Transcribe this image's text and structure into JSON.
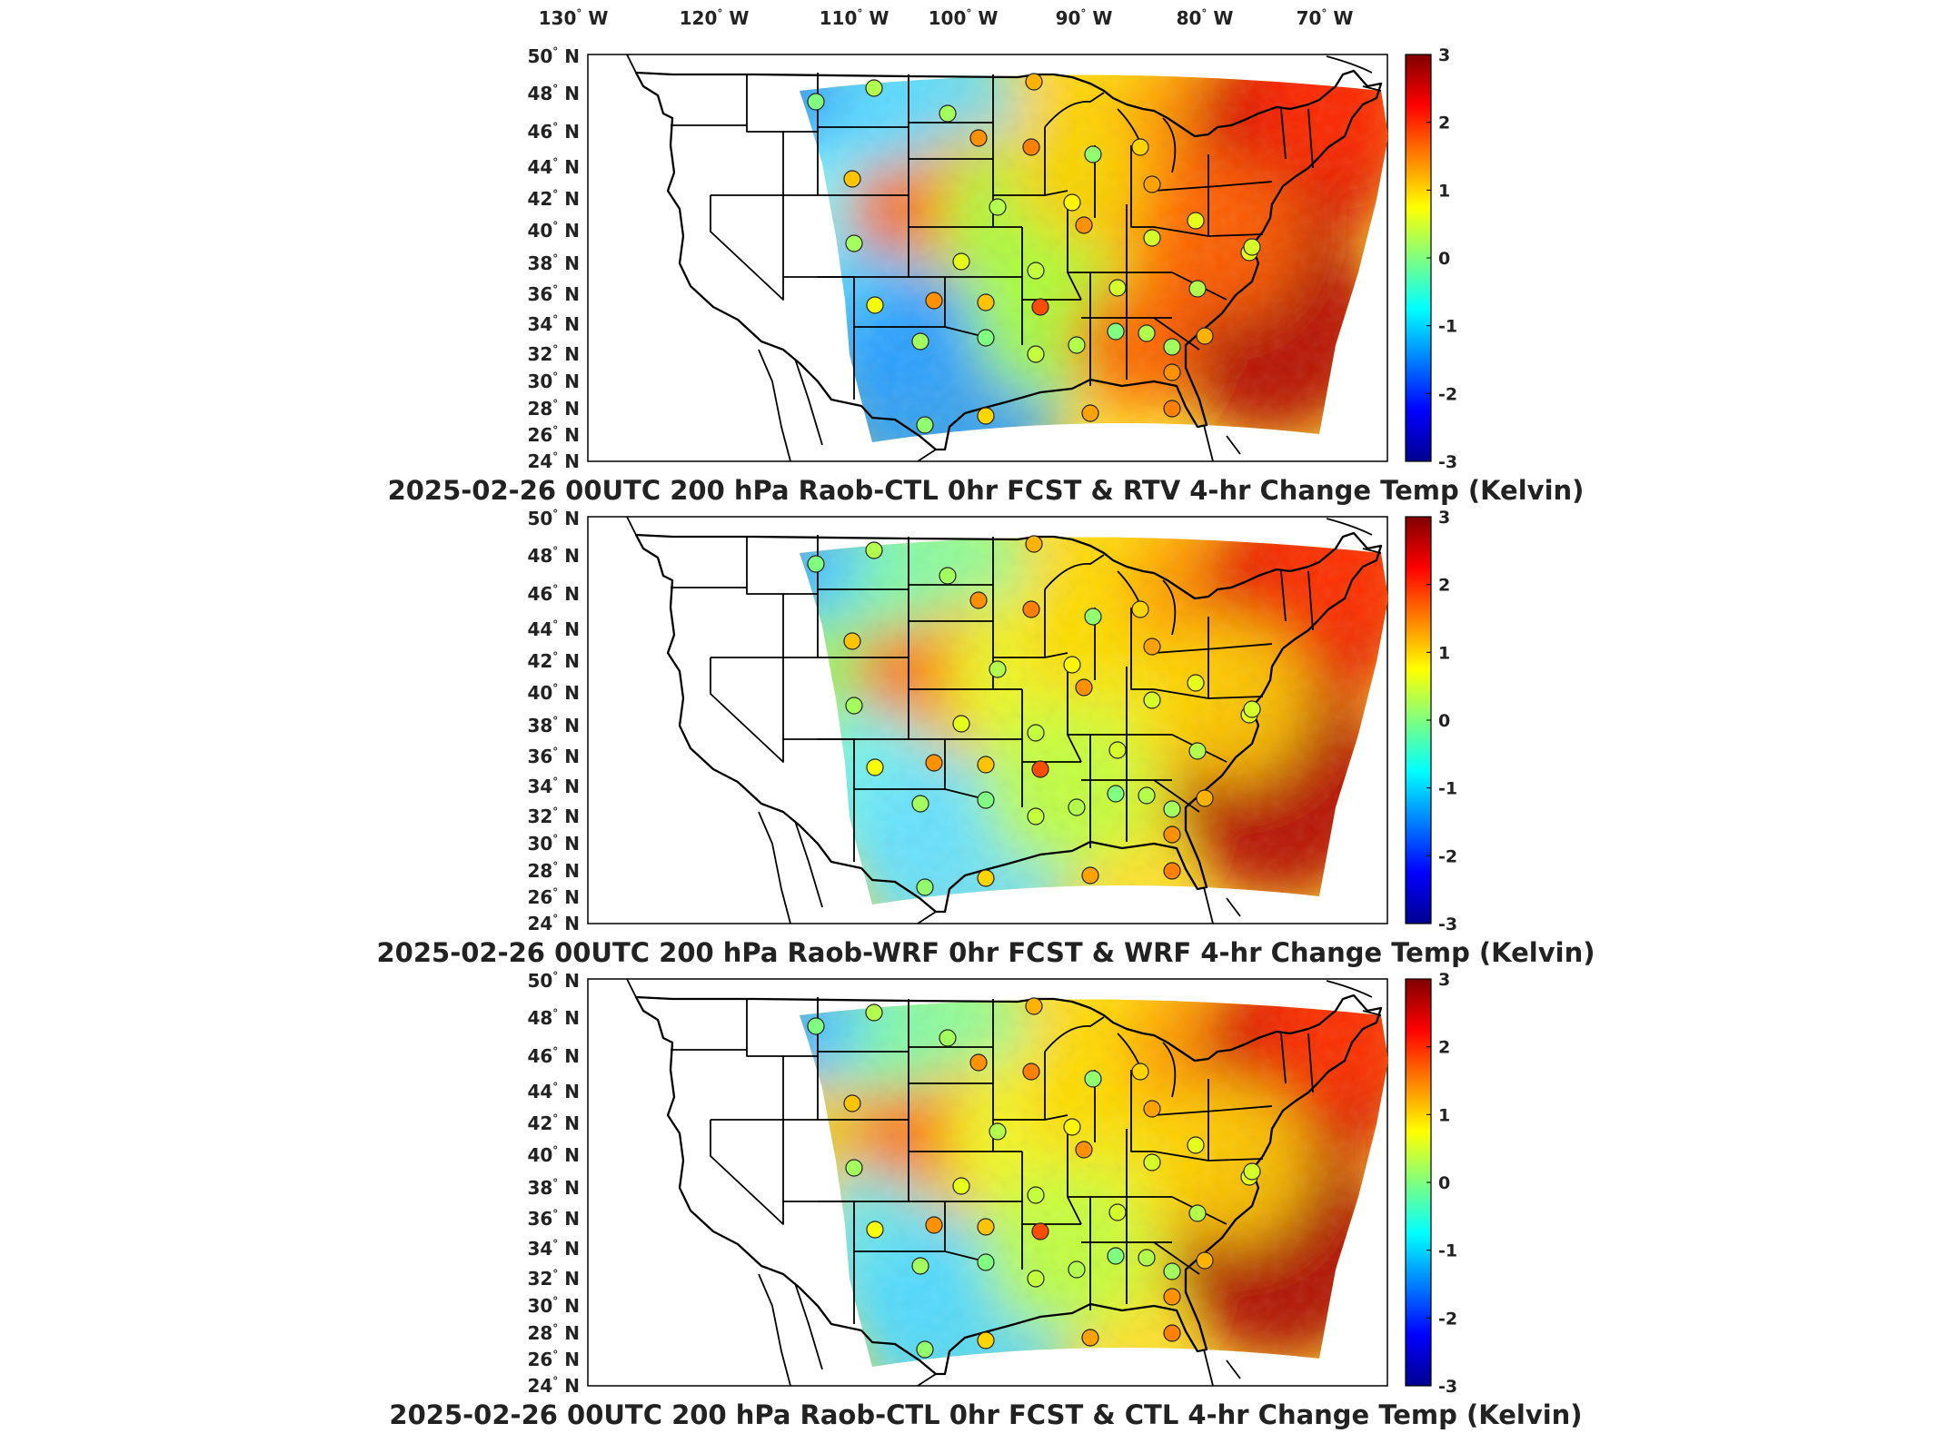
{
  "lon_labels": [
    "130",
    "120",
    "110",
    "100",
    "90",
    "80",
    "70"
  ],
  "lon_suffix": "W",
  "lat_labels": [
    "50",
    "48",
    "46",
    "44",
    "42",
    "40",
    "38",
    "36",
    "34",
    "32",
    "30",
    "28",
    "26",
    "24"
  ],
  "lat_suffix": "N",
  "degree_mark": "°",
  "colorbar": {
    "ticks": [
      "3",
      "2",
      "1",
      "0",
      "-1",
      "-2",
      "-3"
    ],
    "colormap": [
      "#00008f",
      "#0000ff",
      "#00ffff",
      "#ffff00",
      "#ff0000",
      "#800000"
    ]
  },
  "panels": [
    {
      "title": "2025-02-26 00UTC 200 hPa Raob-CTL 0hr FCST & RTV 4-hr Change Temp (Kelvin)"
    },
    {
      "title": "2025-02-26 00UTC 200 hPa Raob-WRF 0hr FCST & WRF 4-hr Change Temp (Kelvin)"
    },
    {
      "title": "2025-02-26 00UTC 200 hPa Raob-CTL 0hr FCST & CTL 4-hr Change Temp (Kelvin)"
    }
  ],
  "raob_station_values": {
    "panel_1": [
      0.0,
      0.3,
      0.2,
      1.2,
      1.4,
      1.5,
      0.1,
      1.0,
      1.3,
      1.1,
      0.3,
      0.8,
      1.4,
      0.5,
      0.6,
      0.2,
      0.6,
      0.4,
      0.6,
      0.5,
      0.7,
      1.4,
      1.1,
      1.8,
      0.5,
      0.3,
      0.2,
      0.0,
      0.4,
      0.3
    ],
    "panel_2": [
      0.0,
      0.3,
      0.2,
      1.2,
      1.4,
      1.5,
      0.1,
      1.0,
      1.3,
      1.1,
      0.3,
      0.8,
      1.4,
      0.5,
      0.6,
      0.2,
      0.6,
      0.4,
      0.6,
      0.5,
      0.7,
      1.4,
      1.1,
      1.8,
      0.5,
      0.3,
      0.2,
      0.0,
      0.4,
      0.3
    ],
    "panel_3": [
      0.0,
      0.3,
      0.2,
      1.2,
      1.4,
      1.5,
      0.1,
      1.0,
      1.3,
      1.1,
      0.3,
      0.8,
      1.4,
      0.5,
      0.6,
      0.2,
      0.6,
      0.4,
      0.6,
      0.5,
      0.7,
      1.4,
      1.1,
      1.8,
      0.5,
      0.3,
      0.2,
      0.0,
      0.4,
      0.3
    ]
  }
}
